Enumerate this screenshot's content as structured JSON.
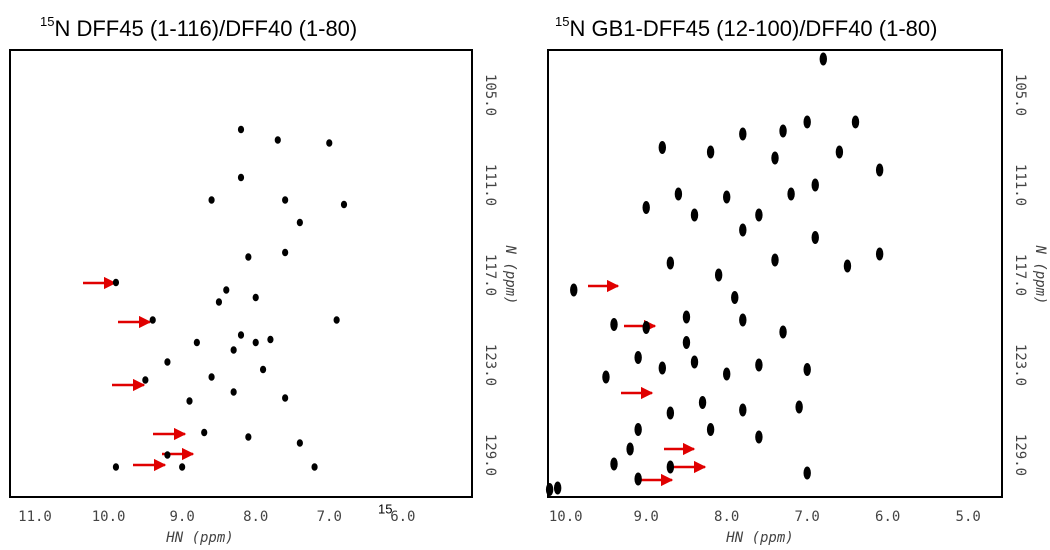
{
  "chart_data": [
    {
      "type": "scatter",
      "title_superscript": "15",
      "title": "N DFF45 (1-116)/DFF40 (1-80)",
      "x_label": "HN (ppm)",
      "y_label": "N (ppm)",
      "color": "#000000",
      "x": [
        9.9,
        9.4,
        9.5,
        9.2,
        9.0,
        9.9,
        8.9,
        8.2,
        7.7,
        7.0,
        8.2,
        8.6,
        7.6,
        6.8,
        7.4,
        8.1,
        7.6,
        8.4,
        8.0,
        8.2,
        8.0,
        7.8,
        8.3,
        7.9,
        8.6,
        8.3,
        7.6,
        7.4,
        8.1,
        7.2,
        6.9,
        8.5,
        8.8,
        9.2,
        8.7
      ],
      "values": [
        117.5,
        120.0,
        124.0,
        129.0,
        129.8,
        129.8,
        125.4,
        107.3,
        108.0,
        108.2,
        110.5,
        112.0,
        112.0,
        112.3,
        113.5,
        115.8,
        115.5,
        118.0,
        118.5,
        121.0,
        121.5,
        121.3,
        122.0,
        123.3,
        123.8,
        124.8,
        125.2,
        128.2,
        127.8,
        129.8,
        120.0,
        118.8,
        121.5,
        122.8,
        127.5
      ],
      "xlim": [
        11.34,
        5.06
      ],
      "xticks": [
        {
          "value": 11,
          "label": "11.0"
        },
        {
          "value": 10,
          "label": "10.0"
        },
        {
          "value": 9,
          "label": "9.0"
        },
        {
          "value": 8,
          "label": "8.0"
        },
        {
          "value": 7,
          "label": "7.0"
        },
        {
          "value": 6,
          "label": "6.0"
        }
      ],
      "ylim": [
        131.8,
        102
      ],
      "yticks": [
        {
          "value": 105,
          "label": "105.0"
        },
        {
          "value": 111,
          "label": "111.0"
        },
        {
          "value": 117,
          "label": "117.0"
        },
        {
          "value": 123,
          "label": "123.0"
        },
        {
          "value": 129,
          "label": "129.0"
        }
      ],
      "annotation": "15"
    },
    {
      "type": "scatter",
      "title_superscript": "15",
      "title": "N GB1-DFF45 (12-100)/DFF40 (1-80)",
      "x_label": "HN (ppm)",
      "y_label": "N (ppm)",
      "color": "#000000",
      "x": [
        6.8,
        7.3,
        7.8,
        8.8,
        8.2,
        7.4,
        6.6,
        6.4,
        7.0,
        6.1,
        8.6,
        8.0,
        7.2,
        6.9,
        7.6,
        8.4,
        9.0,
        7.8,
        6.9,
        8.7,
        8.1,
        7.4,
        6.5,
        6.1,
        9.9,
        9.4,
        9.0,
        8.5,
        7.8,
        7.3,
        9.5,
        9.1,
        8.8,
        8.4,
        8.0,
        7.6,
        7.0,
        8.3,
        7.8,
        7.1,
        8.7,
        9.1,
        8.2,
        7.6,
        9.2,
        9.4,
        8.7,
        9.1,
        7.0,
        10.1,
        10.2,
        8.5,
        7.9
      ],
      "values": [
        102.6,
        107.4,
        107.6,
        108.5,
        108.8,
        109.2,
        108.8,
        106.8,
        106.8,
        110.0,
        111.6,
        111.8,
        111.6,
        111.0,
        113.0,
        113.0,
        112.5,
        114.0,
        114.5,
        116.2,
        117.0,
        116.0,
        116.4,
        115.6,
        118.0,
        120.3,
        120.5,
        119.8,
        120.0,
        120.8,
        123.8,
        122.5,
        123.2,
        122.8,
        123.6,
        123.0,
        123.3,
        125.5,
        126.0,
        125.8,
        126.2,
        127.3,
        127.3,
        127.8,
        128.6,
        129.6,
        129.8,
        130.6,
        130.2,
        131.2,
        131.3,
        121.5,
        118.5
      ],
      "xlim": [
        10.22,
        4.58
      ],
      "xticks": [
        {
          "value": 10,
          "label": "10.0"
        },
        {
          "value": 9,
          "label": "9.0"
        },
        {
          "value": 8,
          "label": "8.0"
        },
        {
          "value": 7,
          "label": "7.0"
        },
        {
          "value": 6,
          "label": "6.0"
        },
        {
          "value": 5,
          "label": "5.0"
        }
      ],
      "ylim": [
        131.8,
        102
      ],
      "yticks": [
        {
          "value": 105,
          "label": "105.0"
        },
        {
          "value": 111,
          "label": "111.0"
        },
        {
          "value": 117,
          "label": "117.0"
        },
        {
          "value": 123,
          "label": "123.0"
        },
        {
          "value": 129,
          "label": "129.0"
        }
      ]
    }
  ]
}
